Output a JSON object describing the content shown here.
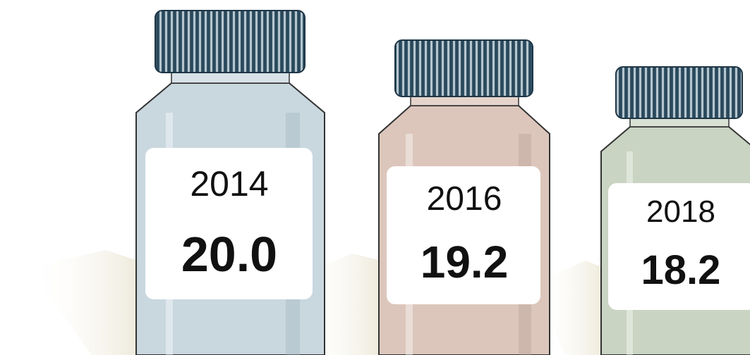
{
  "items": [
    {
      "year": "2014",
      "value": "20.0"
    },
    {
      "year": "2016",
      "value": "19.2"
    },
    {
      "year": "2018",
      "value": "18.2"
    }
  ]
}
